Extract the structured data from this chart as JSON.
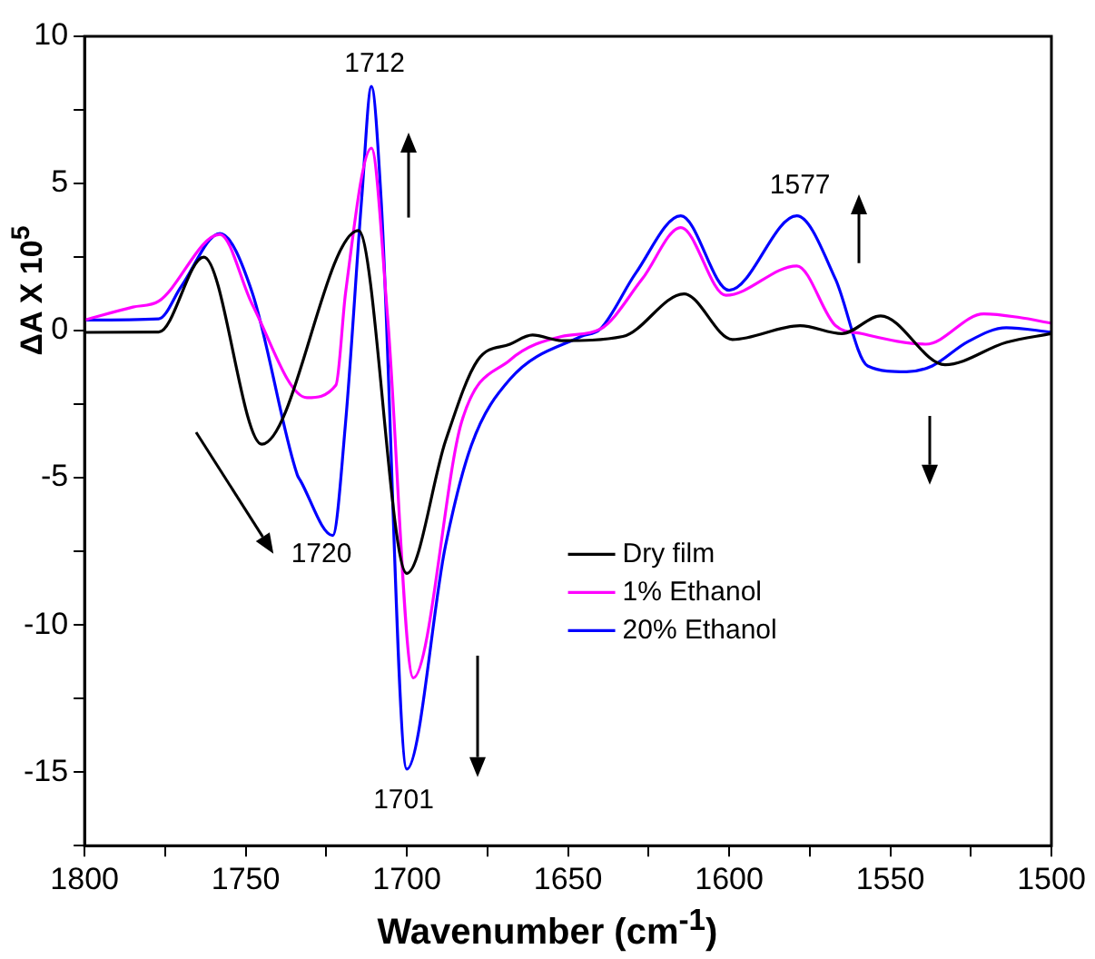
{
  "chart_data": {
    "type": "line",
    "xlabel": "Wavenumber (cm$^{-1}$)",
    "ylabel": "ΔA X 10$^{5}$",
    "xlim": [
      1800,
      1500
    ],
    "ylim": [
      -17.5,
      10
    ],
    "xticks": [
      1800,
      {
        "value": 1775,
        "label": null
      },
      1750,
      {
        "value": 1725,
        "label": null
      },
      1700,
      {
        "value": 1675,
        "label": null
      },
      1650,
      {
        "value": 1625,
        "label": null
      },
      1600,
      {
        "value": 1575,
        "label": null
      },
      1550,
      {
        "value": 1525,
        "label": null
      },
      1500
    ],
    "yticks": [
      {
        "value": -17.5,
        "label": null
      },
      -15,
      {
        "value": -12.5,
        "label": null
      },
      -10,
      {
        "value": -7.5,
        "label": null
      },
      -5,
      {
        "value": -2.5,
        "label": null
      },
      0,
      {
        "value": 2.5,
        "label": null
      },
      5,
      {
        "value": 7.5,
        "label": null
      },
      10
    ],
    "grid": false,
    "legend": "bottom right",
    "marker": "none",
    "line_style": "solid",
    "series": [
      {
        "name": "Dry film",
        "color": "#000000",
        "x": [
          1800,
          1777,
          1763,
          1745,
          1715,
          1700,
          1688,
          1678,
          1668,
          1661,
          1652,
          1633,
          1614,
          1599,
          1578,
          1565,
          1553,
          1533,
          1514,
          1500
        ],
        "values": [
          -0.06,
          -0.05,
          2.5,
          -3.86,
          3.4,
          -8.25,
          -3.75,
          -1.0,
          -0.46,
          -0.15,
          -0.34,
          -0.2,
          1.25,
          -0.3,
          0.17,
          -0.1,
          0.5,
          -1.16,
          -0.4,
          -0.1
        ]
      },
      {
        "name": "1% Ethanol",
        "color": "#ff00ff",
        "x": [
          1800,
          1785,
          1777,
          1758,
          1748,
          1731,
          1722,
          1719,
          1711,
          1706,
          1698,
          1683,
          1668,
          1652,
          1640,
          1627,
          1615,
          1601,
          1579,
          1567,
          1559,
          1539,
          1521,
          1510,
          1500
        ],
        "values": [
          0.36,
          0.8,
          1.0,
          3.27,
          0.9,
          -2.28,
          -1.85,
          1.3,
          6.2,
          0.5,
          -11.8,
          -3.1,
          -1.0,
          -0.2,
          0.05,
          1.75,
          3.5,
          1.2,
          2.2,
          0.17,
          -0.1,
          -0.46,
          0.57,
          0.45,
          0.25
        ]
      },
      {
        "name": "20% Ethanol",
        "color": "#0000ff",
        "x": [
          1800,
          1777,
          1770,
          1758,
          1748,
          1734,
          1733,
          1723,
          1719,
          1714,
          1711,
          1708,
          1700,
          1688,
          1680,
          1668,
          1646,
          1640,
          1629,
          1615,
          1600,
          1579,
          1567,
          1557,
          1545,
          1537,
          1526,
          1514,
          1500
        ],
        "values": [
          0.36,
          0.4,
          1.5,
          3.3,
          1.3,
          -4.9,
          -5.1,
          -6.96,
          -3.1,
          4.5,
          8.3,
          4.5,
          -14.9,
          -7.3,
          -3.9,
          -1.65,
          -0.2,
          0.05,
          1.95,
          3.9,
          1.37,
          3.9,
          1.75,
          -1.2,
          -1.4,
          -1.2,
          -0.38,
          0.1,
          -0.05
        ]
      }
    ],
    "annotations": [
      "1712",
      "1720",
      "1701",
      "1577"
    ]
  }
}
